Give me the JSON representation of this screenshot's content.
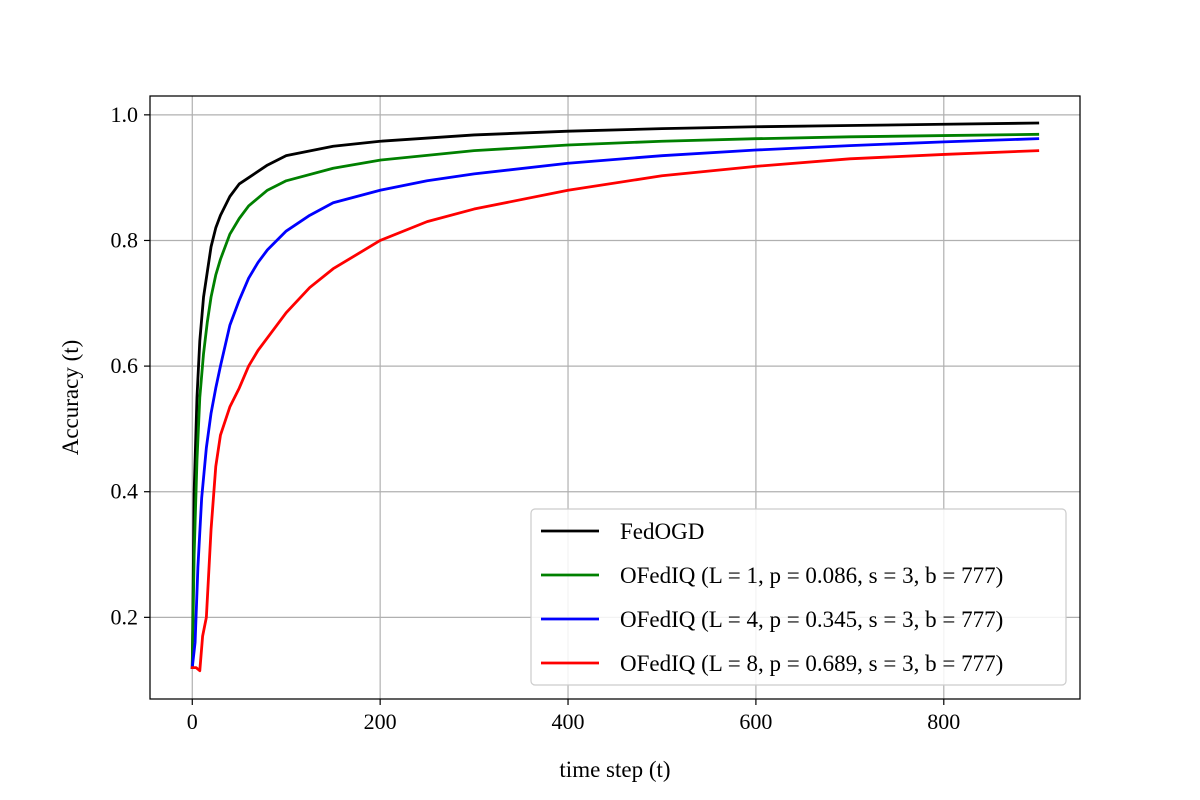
{
  "chart_data": {
    "type": "line",
    "title": "",
    "xlabel": "time step (t)",
    "ylabel": "Accuracy (t)",
    "xlim": [
      -45,
      945
    ],
    "ylim": [
      0.07,
      1.03
    ],
    "xticks": [
      0,
      200,
      400,
      600,
      800
    ],
    "xtick_labels": [
      "0",
      "200",
      "400",
      "600",
      "800"
    ],
    "yticks": [
      0.2,
      0.4,
      0.6,
      0.8,
      1.0
    ],
    "ytick_labels": [
      "0.2",
      "0.4",
      "0.6",
      "0.8",
      "1.0"
    ],
    "grid": true,
    "legend_position": "lower-right",
    "series": [
      {
        "name": "FedOGD",
        "color": "#000000",
        "x": [
          0,
          2,
          5,
          8,
          12,
          16,
          20,
          25,
          30,
          40,
          50,
          60,
          80,
          100,
          150,
          200,
          300,
          400,
          500,
          600,
          700,
          800,
          900
        ],
        "y": [
          0.12,
          0.4,
          0.55,
          0.64,
          0.71,
          0.75,
          0.79,
          0.82,
          0.84,
          0.87,
          0.89,
          0.9,
          0.92,
          0.935,
          0.95,
          0.958,
          0.968,
          0.974,
          0.978,
          0.981,
          0.983,
          0.985,
          0.987
        ]
      },
      {
        "name": "OFedIQ (L = 1, p = 0.086, s = 3, b = 777)",
        "color": "#008000",
        "x": [
          0,
          2,
          5,
          8,
          12,
          16,
          20,
          25,
          30,
          40,
          50,
          60,
          80,
          100,
          150,
          200,
          300,
          400,
          500,
          600,
          700,
          800,
          900
        ],
        "y": [
          0.12,
          0.3,
          0.45,
          0.55,
          0.62,
          0.67,
          0.71,
          0.745,
          0.77,
          0.81,
          0.835,
          0.855,
          0.88,
          0.895,
          0.915,
          0.928,
          0.943,
          0.952,
          0.958,
          0.962,
          0.965,
          0.967,
          0.969
        ]
      },
      {
        "name": "OFedIQ (L = 4, p = 0.345, s = 3, b = 777)",
        "color": "#0000ff",
        "x": [
          0,
          3,
          6,
          10,
          15,
          20,
          25,
          30,
          40,
          50,
          60,
          70,
          80,
          100,
          125,
          150,
          200,
          250,
          300,
          400,
          500,
          600,
          700,
          800,
          900
        ],
        "y": [
          0.12,
          0.16,
          0.28,
          0.39,
          0.47,
          0.525,
          0.565,
          0.6,
          0.665,
          0.705,
          0.74,
          0.765,
          0.785,
          0.815,
          0.84,
          0.86,
          0.88,
          0.895,
          0.906,
          0.923,
          0.935,
          0.944,
          0.951,
          0.957,
          0.962
        ]
      },
      {
        "name": "OFedIQ (L = 8, p = 0.689, s = 3, b = 777)",
        "color": "#ff0000",
        "x": [
          0,
          4,
          8,
          11,
          15,
          20,
          25,
          30,
          40,
          50,
          60,
          70,
          80,
          100,
          125,
          150,
          200,
          250,
          300,
          400,
          500,
          600,
          700,
          800,
          900
        ],
        "y": [
          0.12,
          0.12,
          0.115,
          0.17,
          0.2,
          0.34,
          0.44,
          0.49,
          0.535,
          0.565,
          0.6,
          0.625,
          0.645,
          0.685,
          0.725,
          0.755,
          0.8,
          0.83,
          0.85,
          0.88,
          0.903,
          0.918,
          0.93,
          0.937,
          0.943
        ]
      }
    ]
  }
}
